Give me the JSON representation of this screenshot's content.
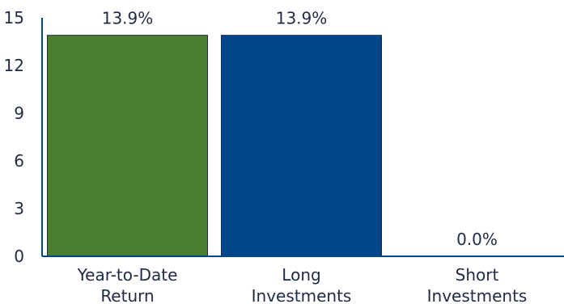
{
  "chart_data": {
    "type": "bar",
    "categories": [
      [
        "Year-to-Date",
        "Return"
      ],
      [
        "Long",
        "Investments"
      ],
      [
        "Short",
        "Investments"
      ]
    ],
    "values": [
      13.9,
      13.9,
      0.0
    ],
    "value_labels": [
      "13.9%",
      "13.9%",
      "0.0%"
    ],
    "colors": [
      "#4a7e2e",
      "#00468b",
      "#00468b"
    ],
    "yticks": [
      0,
      3,
      6,
      9,
      12,
      15
    ],
    "ylim": [
      0,
      15
    ],
    "axis_color": "#00468b",
    "grid": false,
    "title": "",
    "xlabel": "",
    "ylabel": ""
  }
}
